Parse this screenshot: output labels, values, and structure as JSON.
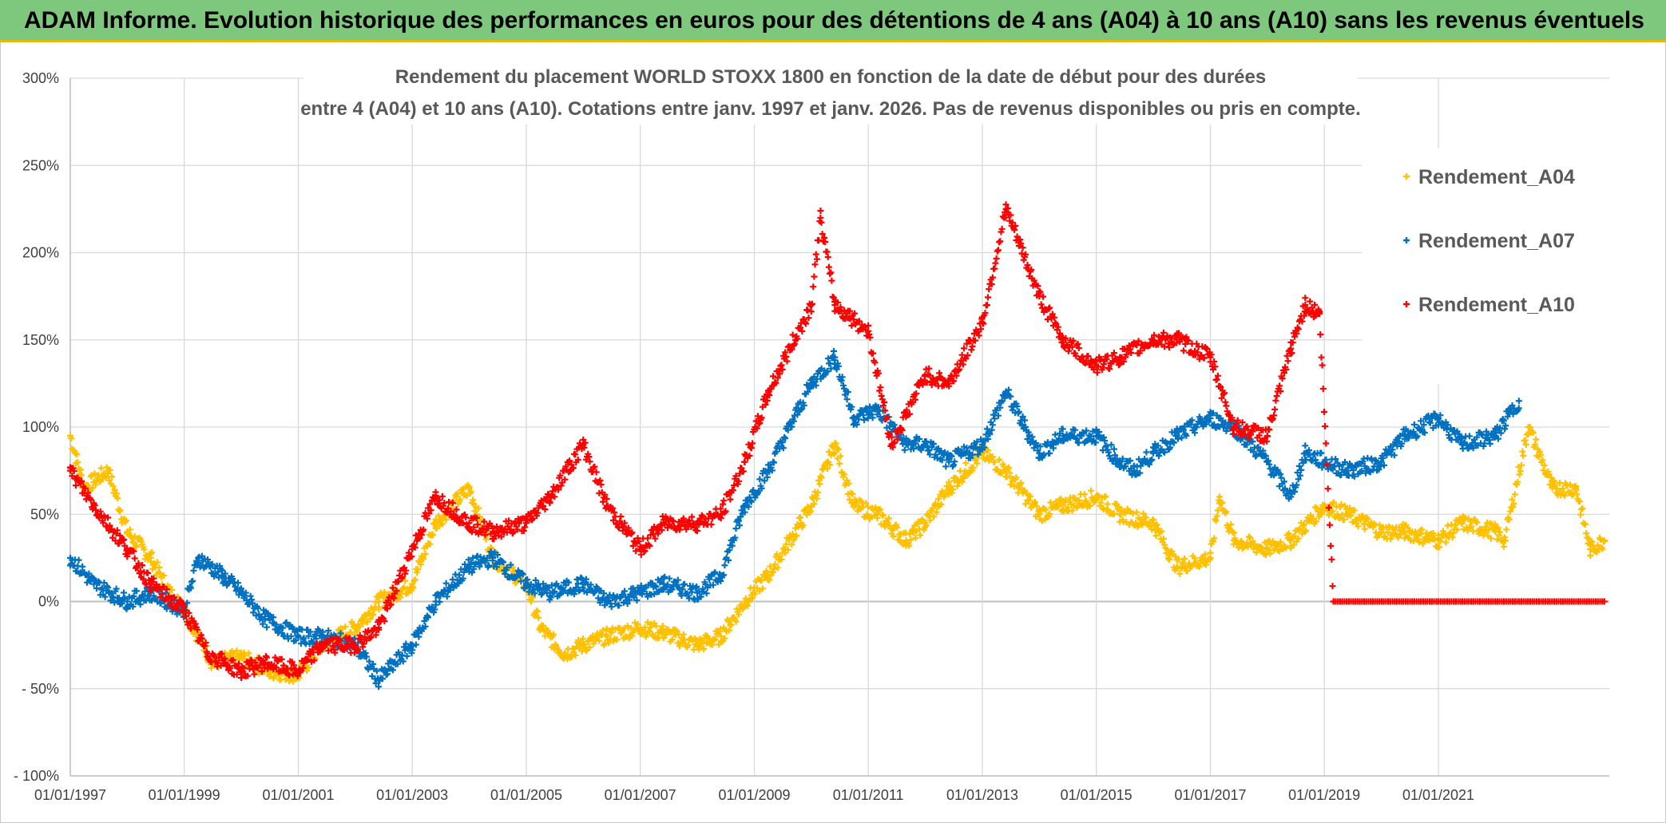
{
  "banner": {
    "title": "ADAM Informe. Evolution historique des performances en euros pour des détentions de 4 ans (A04) à 10 ans (A10) sans les revenus éventuels",
    "background": "#7ec87e",
    "accent": "#e5b81a"
  },
  "chart_data": {
    "type": "scatter",
    "title_lines": [
      "Rendement du placement WORLD STOXX 1800 en fonction de la date de début pour des durées",
      "entre 4 (A04) et 10 ans (A10). Cotations entre janv. 1997 et janv. 2026. Pas de revenus disponibles ou pris en compte."
    ],
    "marker": "+",
    "x_range": [
      "01/01/1997",
      "01/01/2024"
    ],
    "x_ticks": [
      "01/01/1997",
      "01/01/1999",
      "01/01/2001",
      "01/01/2003",
      "01/01/2005",
      "01/01/2007",
      "01/01/2009",
      "01/01/2011",
      "01/01/2013",
      "01/01/2015",
      "01/01/2017",
      "01/01/2019",
      "01/01/2021"
    ],
    "ylim": [
      -100,
      300
    ],
    "y_ticks": [
      300,
      250,
      200,
      150,
      100,
      50,
      0,
      -50,
      -100
    ],
    "y_tick_labels": [
      "300%",
      "250%",
      "200%",
      "150%",
      "100%",
      "50%",
      "0%",
      "- 50%",
      "- 100%"
    ],
    "grid": true,
    "legend_position": "top-right",
    "series": [
      {
        "name": "Rendement_A04",
        "color": "#ffc000",
        "points": [
          [
            "01/01/1997",
            95
          ],
          [
            "01/04/1997",
            65
          ],
          [
            "01/09/1997",
            75
          ],
          [
            "01/01/1998",
            40
          ],
          [
            "01/06/1998",
            25
          ],
          [
            "01/10/1998",
            5
          ],
          [
            "01/01/1999",
            -5
          ],
          [
            "01/04/1999",
            -20
          ],
          [
            "01/07/1999",
            -35
          ],
          [
            "01/01/2000",
            -32
          ],
          [
            "01/07/2000",
            -40
          ],
          [
            "01/01/2001",
            -42
          ],
          [
            "01/06/2001",
            -25
          ],
          [
            "01/01/2002",
            -15
          ],
          [
            "01/06/2002",
            0
          ],
          [
            "01/01/2003",
            10
          ],
          [
            "01/06/2003",
            45
          ],
          [
            "01/01/2004",
            65
          ],
          [
            "01/06/2004",
            25
          ],
          [
            "01/01/2005",
            10
          ],
          [
            "01/04/2005",
            -15
          ],
          [
            "01/09/2005",
            -30
          ],
          [
            "01/01/2006",
            -25
          ],
          [
            "01/06/2006",
            -20
          ],
          [
            "01/01/2007",
            -15
          ],
          [
            "01/06/2007",
            -18
          ],
          [
            "01/01/2008",
            -25
          ],
          [
            "01/06/2008",
            -20
          ],
          [
            "01/11/2008",
            0
          ],
          [
            "01/04/2009",
            15
          ],
          [
            "01/01/2010",
            55
          ],
          [
            "01/06/2010",
            90
          ],
          [
            "01/10/2010",
            55
          ],
          [
            "01/03/2011",
            50
          ],
          [
            "01/09/2011",
            35
          ],
          [
            "01/01/2012",
            45
          ],
          [
            "01/06/2012",
            65
          ],
          [
            "01/01/2013",
            85
          ],
          [
            "01/06/2013",
            75
          ],
          [
            "01/01/2014",
            50
          ],
          [
            "01/06/2014",
            55
          ],
          [
            "01/01/2015",
            60
          ],
          [
            "01/06/2015",
            50
          ],
          [
            "01/01/2016",
            45
          ],
          [
            "01/06/2016",
            20
          ],
          [
            "01/01/2017",
            25
          ],
          [
            "01/03/2017",
            60
          ],
          [
            "01/06/2017",
            35
          ],
          [
            "01/01/2018",
            30
          ],
          [
            "01/06/2018",
            35
          ],
          [
            "01/01/2019",
            55
          ],
          [
            "01/06/2019",
            50
          ],
          [
            "01/01/2020",
            40
          ],
          [
            "01/06/2020",
            40
          ],
          [
            "01/01/2021",
            35
          ],
          [
            "01/06/2021",
            45
          ],
          [
            "01/01/2022",
            40
          ],
          [
            "01/03/2022",
            35
          ],
          [
            "01/08/2022",
            100
          ],
          [
            "01/01/2023",
            65
          ],
          [
            "01/06/2023",
            65
          ],
          [
            "01/09/2023",
            30
          ],
          [
            "01/12/2023",
            35
          ]
        ]
      },
      {
        "name": "Rendement_A07",
        "color": "#0070c0",
        "points": [
          [
            "01/01/1997",
            25
          ],
          [
            "01/06/1997",
            10
          ],
          [
            "01/01/1998",
            0
          ],
          [
            "01/06/1998",
            5
          ],
          [
            "01/01/1999",
            -5
          ],
          [
            "01/04/1999",
            25
          ],
          [
            "01/09/1999",
            15
          ],
          [
            "01/01/2000",
            5
          ],
          [
            "01/06/2000",
            -10
          ],
          [
            "01/01/2001",
            -20
          ],
          [
            "01/06/2001",
            -20
          ],
          [
            "01/01/2002",
            -25
          ],
          [
            "01/06/2002",
            -45
          ],
          [
            "01/01/2003",
            -25
          ],
          [
            "01/06/2003",
            0
          ],
          [
            "01/01/2004",
            20
          ],
          [
            "01/06/2004",
            25
          ],
          [
            "01/01/2005",
            10
          ],
          [
            "01/06/2005",
            5
          ],
          [
            "01/01/2006",
            10
          ],
          [
            "01/06/2006",
            0
          ],
          [
            "01/01/2007",
            5
          ],
          [
            "01/06/2007",
            10
          ],
          [
            "01/01/2008",
            5
          ],
          [
            "01/06/2008",
            15
          ],
          [
            "01/11/2008",
            55
          ],
          [
            "01/04/2009",
            75
          ],
          [
            "01/01/2010",
            125
          ],
          [
            "01/06/2010",
            140
          ],
          [
            "01/10/2010",
            105
          ],
          [
            "01/03/2011",
            110
          ],
          [
            "01/09/2011",
            90
          ],
          [
            "01/01/2012",
            90
          ],
          [
            "01/06/2012",
            80
          ],
          [
            "01/01/2013",
            90
          ],
          [
            "01/06/2013",
            120
          ],
          [
            "01/01/2014",
            85
          ],
          [
            "01/06/2014",
            95
          ],
          [
            "01/01/2015",
            95
          ],
          [
            "01/06/2015",
            80
          ],
          [
            "01/09/2015",
            75
          ],
          [
            "01/01/2016",
            85
          ],
          [
            "01/06/2016",
            95
          ],
          [
            "01/01/2017",
            105
          ],
          [
            "01/06/2017",
            100
          ],
          [
            "01/01/2018",
            80
          ],
          [
            "01/06/2018",
            60
          ],
          [
            "01/09/2018",
            85
          ],
          [
            "01/01/2019",
            80
          ],
          [
            "01/06/2019",
            75
          ],
          [
            "01/01/2020",
            80
          ],
          [
            "01/06/2020",
            95
          ],
          [
            "01/01/2021",
            105
          ],
          [
            "01/06/2021",
            90
          ],
          [
            "01/01/2022",
            95
          ],
          [
            "01/06/2022",
            115
          ]
        ]
      },
      {
        "name": "Rendement_A10",
        "color": "#ff0000",
        "points": [
          [
            "01/01/1997",
            75
          ],
          [
            "01/06/1997",
            55
          ],
          [
            "01/01/1998",
            30
          ],
          [
            "01/06/1998",
            10
          ],
          [
            "01/01/1999",
            -5
          ],
          [
            "01/06/1999",
            -30
          ],
          [
            "01/01/2000",
            -40
          ],
          [
            "01/06/2000",
            -35
          ],
          [
            "01/01/2001",
            -40
          ],
          [
            "01/06/2001",
            -25
          ],
          [
            "01/01/2002",
            -25
          ],
          [
            "01/06/2002",
            -15
          ],
          [
            "01/01/2003",
            30
          ],
          [
            "01/06/2003",
            60
          ],
          [
            "01/01/2004",
            45
          ],
          [
            "01/06/2004",
            40
          ],
          [
            "01/01/2005",
            45
          ],
          [
            "01/06/2005",
            60
          ],
          [
            "01/01/2006",
            90
          ],
          [
            "01/06/2006",
            55
          ],
          [
            "01/01/2007",
            30
          ],
          [
            "01/06/2007",
            45
          ],
          [
            "01/01/2008",
            45
          ],
          [
            "01/06/2008",
            50
          ],
          [
            "01/11/2008",
            80
          ],
          [
            "01/04/2009",
            120
          ],
          [
            "01/01/2010",
            170
          ],
          [
            "01/03/2010",
            220
          ],
          [
            "01/06/2010",
            170
          ],
          [
            "01/01/2011",
            155
          ],
          [
            "01/06/2011",
            90
          ],
          [
            "01/01/2012",
            130
          ],
          [
            "01/06/2012",
            125
          ],
          [
            "01/01/2013",
            160
          ],
          [
            "01/06/2013",
            225
          ],
          [
            "01/01/2014",
            175
          ],
          [
            "01/06/2014",
            150
          ],
          [
            "01/01/2015",
            135
          ],
          [
            "01/06/2015",
            140
          ],
          [
            "01/01/2016",
            150
          ],
          [
            "01/06/2016",
            150
          ],
          [
            "01/01/2017",
            140
          ],
          [
            "01/06/2017",
            100
          ],
          [
            "01/01/2018",
            95
          ],
          [
            "01/06/2018",
            145
          ],
          [
            "01/09/2018",
            170
          ],
          [
            "01/12/2018",
            165
          ],
          [
            "01/03/2019",
            0
          ],
          [
            "01/12/2023",
            0
          ]
        ]
      }
    ]
  }
}
